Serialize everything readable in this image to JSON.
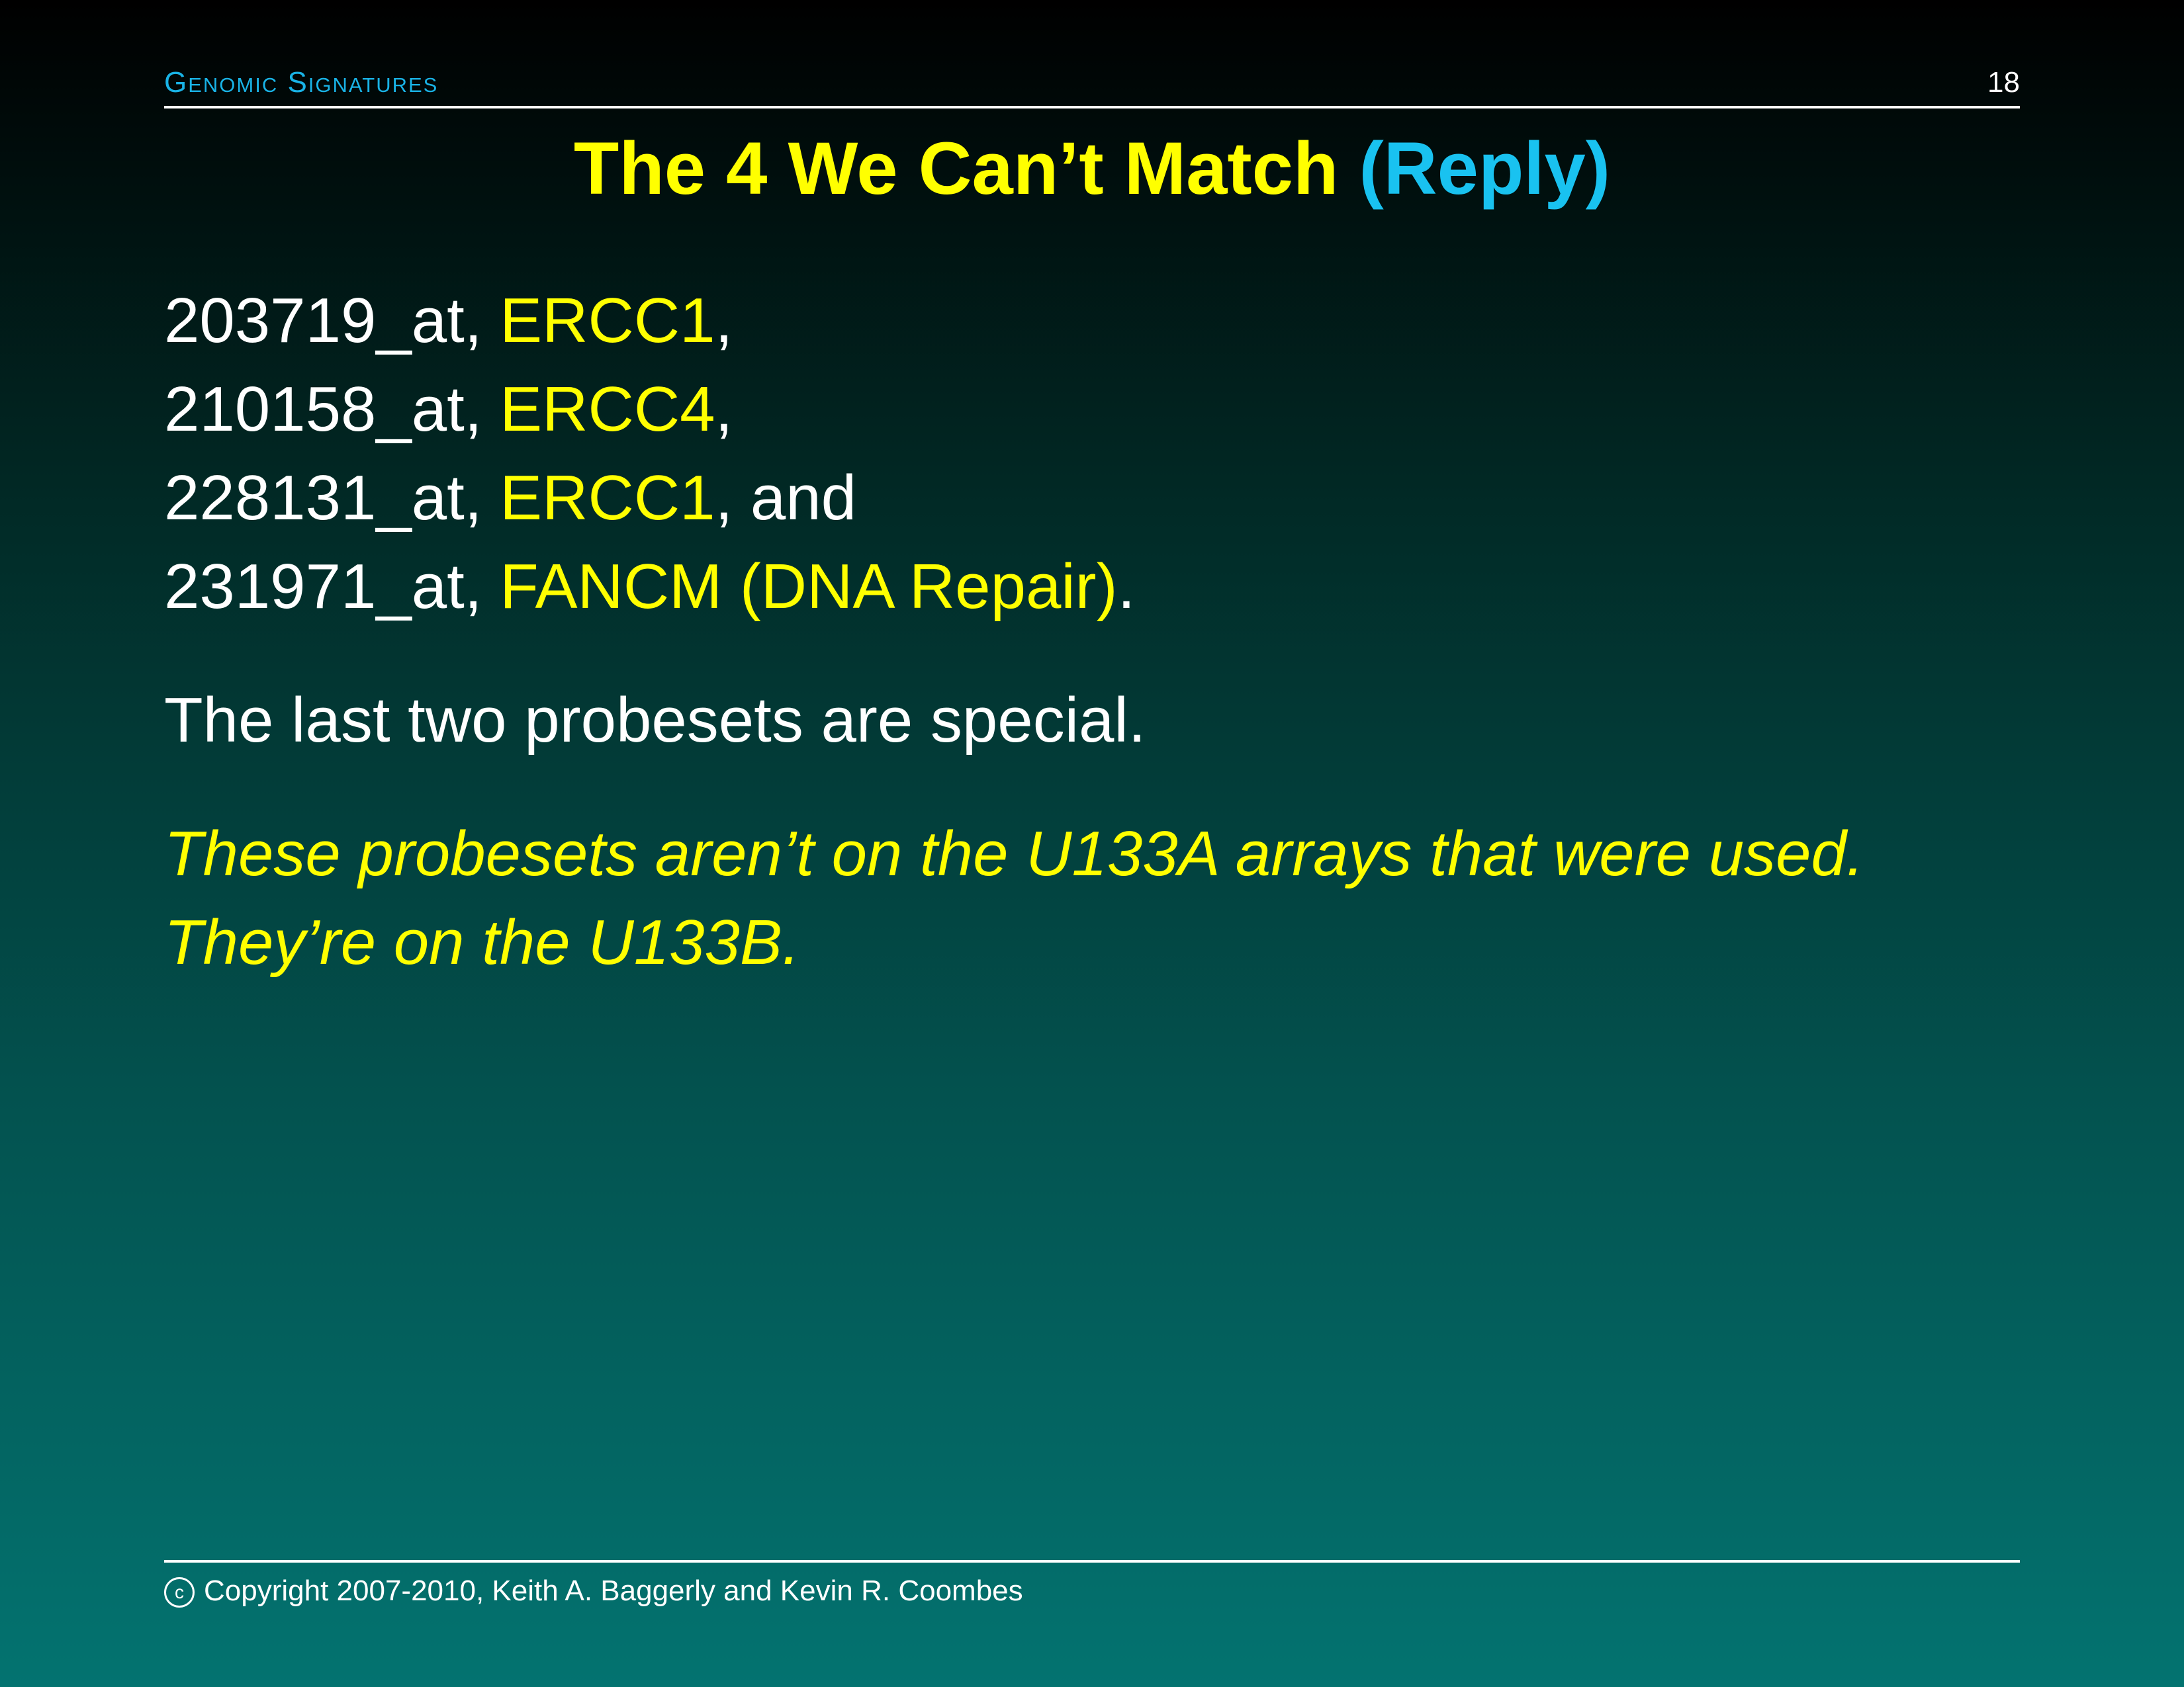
{
  "header": {
    "section": "Genomic Signatures",
    "page_number": "18"
  },
  "title": {
    "main": "The 4 We Can’t Match",
    "accent": "(Reply)"
  },
  "probes": [
    {
      "id": "203719_at,",
      "gene": "ERCC1",
      "suffix": ","
    },
    {
      "id": "210158_at,",
      "gene": "ERCC4",
      "suffix": ","
    },
    {
      "id": "228131_at,",
      "gene": "ERCC1",
      "suffix": ", and"
    },
    {
      "id": "231971_at,",
      "gene": "FANCM (DNA Repair)",
      "suffix": "."
    }
  ],
  "statement": "The last two probesets are special.",
  "note": {
    "line1": "These probesets aren’t on the U133A arrays that were used.",
    "line2": "They’re on the U133B."
  },
  "footer": {
    "copyright_symbol": "c",
    "text": "Copyright 2007-2010, Keith A. Baggerly and Kevin R. Coombes"
  },
  "colors": {
    "accent_yellow": "#ffff00",
    "accent_cyan": "#19c2f0",
    "header_blue": "#19b3e6"
  }
}
